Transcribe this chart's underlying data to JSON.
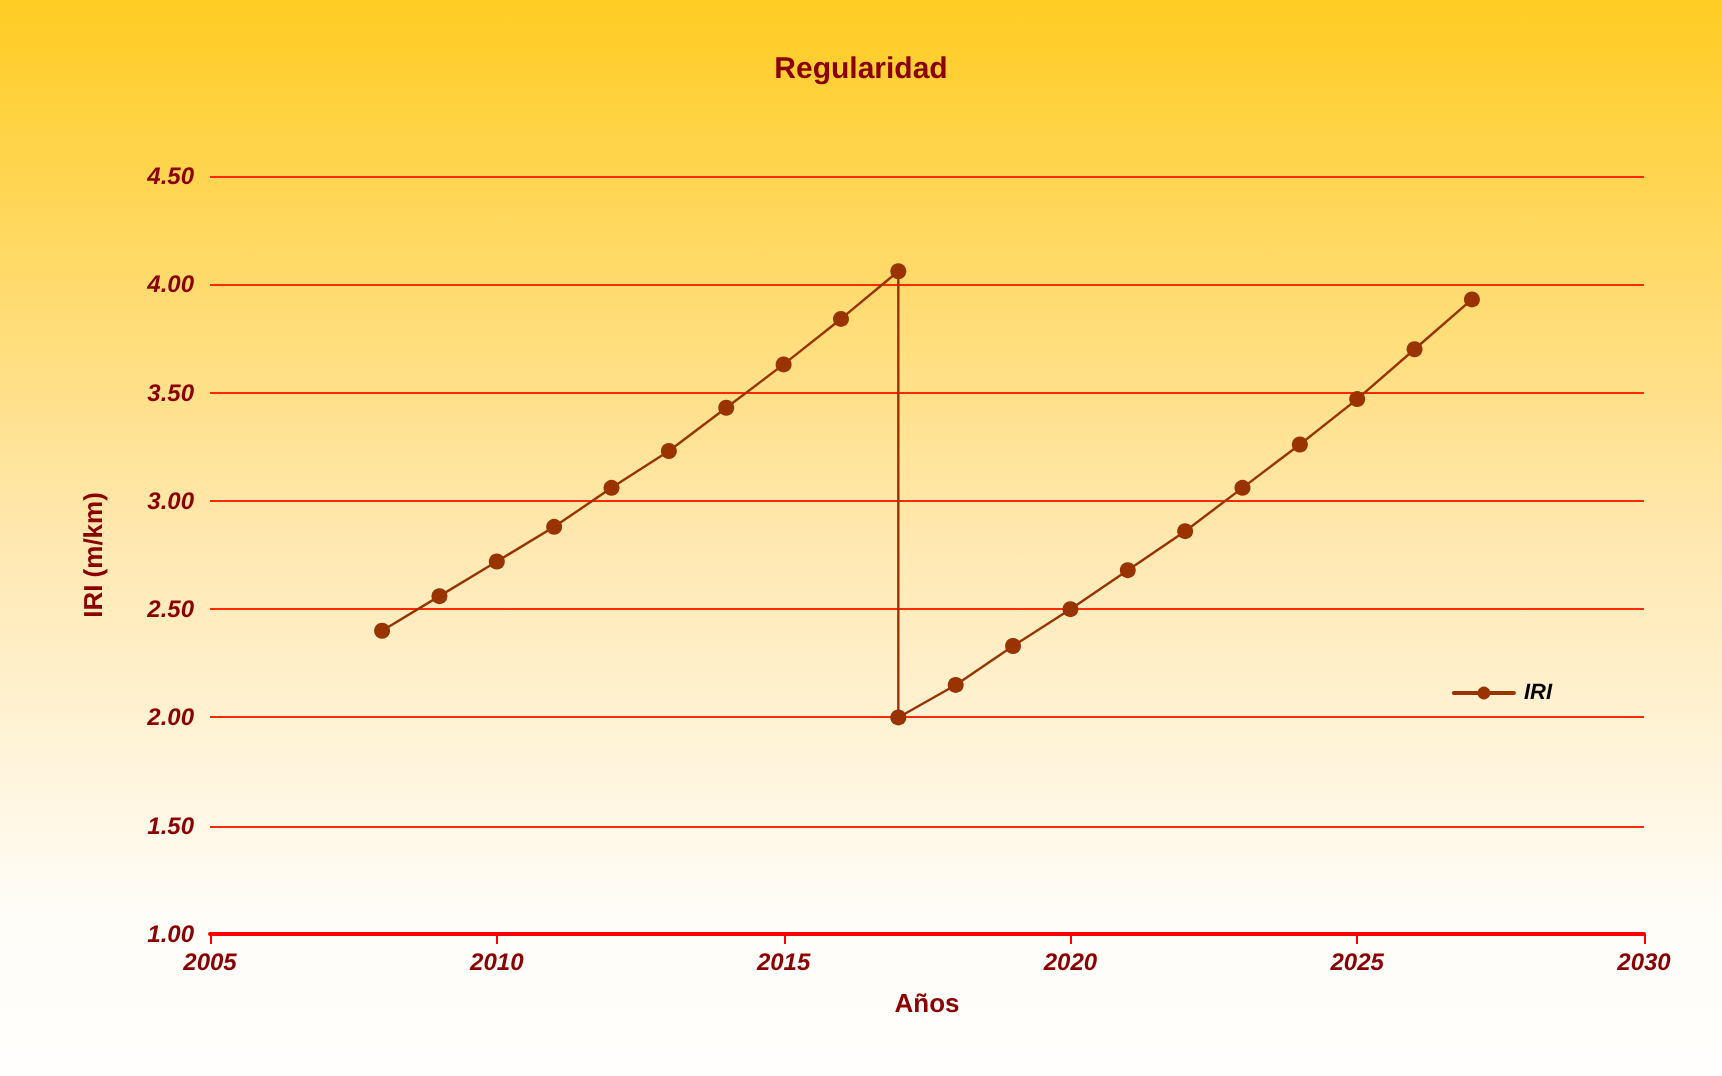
{
  "chart_data": {
    "type": "line",
    "title": "Regularidad",
    "xlabel": "Años",
    "ylabel": "IRI (m/km)",
    "series": [
      {
        "name": "IRI",
        "color": "#993300",
        "x": [
          2008,
          2009,
          2010,
          2011,
          2012,
          2013,
          2014,
          2015,
          2016,
          2017,
          2017,
          2018,
          2019,
          2020,
          2021,
          2022,
          2023,
          2024,
          2025,
          2026,
          2027
        ],
        "values": [
          2.4,
          2.56,
          2.72,
          2.88,
          3.06,
          3.23,
          3.43,
          3.63,
          3.84,
          4.06,
          2.0,
          2.15,
          2.33,
          2.5,
          2.68,
          2.86,
          3.06,
          3.26,
          3.47,
          3.7,
          3.93
        ]
      }
    ],
    "xlim": [
      2005,
      2030
    ],
    "xticks": [
      2005,
      2010,
      2015,
      2020,
      2025,
      2030
    ],
    "ylim": [
      1.0,
      4.5
    ],
    "yticks": [
      {
        "value": 1,
        "label": "1.00"
      },
      {
        "value": 1.5,
        "label": "1.50"
      },
      {
        "value": 2,
        "label": "2.00"
      },
      {
        "value": 2.5,
        "label": "2.50"
      },
      {
        "value": 3,
        "label": "3.00"
      },
      {
        "value": 3.5,
        "label": "3.50"
      },
      {
        "value": 4,
        "label": "4.00"
      },
      {
        "value": 4.5,
        "label": "4.50"
      }
    ],
    "grid": "y",
    "legend": "right",
    "marker": "circle",
    "line_style": "solid"
  }
}
